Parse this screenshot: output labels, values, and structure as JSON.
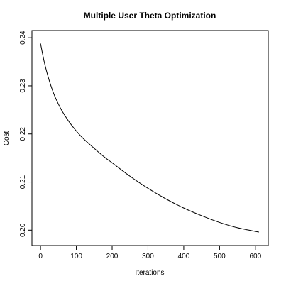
{
  "chart_data": {
    "type": "line",
    "title": "Multiple User Theta Optimization",
    "xlabel": "Iterations",
    "ylabel": "Cost",
    "xlim": [
      -24,
      636
    ],
    "ylim": [
      0.1968,
      0.2415
    ],
    "xticks": [
      0,
      100,
      200,
      300,
      400,
      500,
      600
    ],
    "xtick_labels": [
      "0",
      "100",
      "200",
      "300",
      "400",
      "500",
      "600"
    ],
    "yticks": [
      0.2,
      0.21,
      0.22,
      0.23,
      0.24
    ],
    "ytick_labels": [
      "0.20",
      "0.21",
      "0.22",
      "0.23",
      "0.24"
    ],
    "grid": false,
    "series": [
      {
        "color": "#000000",
        "x": [
          0,
          10,
          20,
          30,
          40,
          50,
          60,
          80,
          100,
          120,
          150,
          180,
          200,
          250,
          300,
          350,
          400,
          450,
          500,
          550,
          610
        ],
        "y": [
          0.2388,
          0.2351,
          0.2322,
          0.2298,
          0.2278,
          0.2262,
          0.2248,
          0.2225,
          0.2206,
          0.219,
          0.217,
          0.2151,
          0.214,
          0.2112,
          0.2087,
          0.2065,
          0.2046,
          0.203,
          0.2016,
          0.2005,
          0.1996
        ]
      }
    ]
  }
}
